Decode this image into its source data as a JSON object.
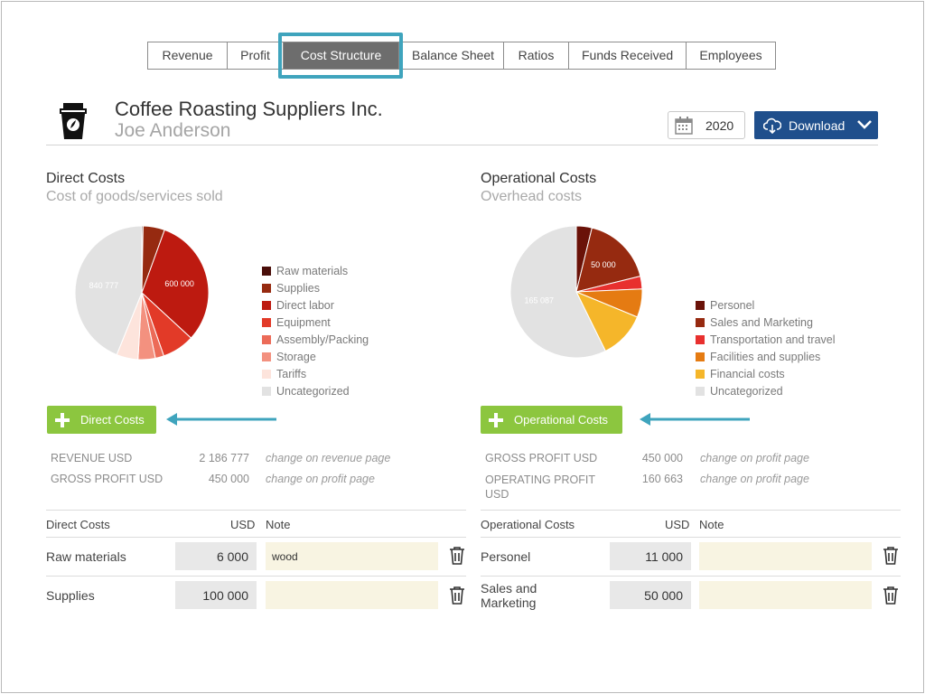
{
  "tabs": [
    {
      "label": "Revenue"
    },
    {
      "label": "Profit"
    },
    {
      "label": "Cost Structure",
      "active": true
    },
    {
      "label": "Balance Sheet"
    },
    {
      "label": "Ratios"
    },
    {
      "label": "Funds Received"
    },
    {
      "label": "Employees"
    }
  ],
  "header": {
    "company": "Coffee Roasting Suppliers Inc.",
    "person": "Joe Anderson",
    "year": "2020",
    "download_label": "Download",
    "icon": "coffee-cup-icon"
  },
  "colors": {
    "active_tab": "#6d6d6d",
    "highlight": "#3fa4bd",
    "download": "#1f4f8c",
    "add_button": "#8cc63f",
    "arrow": "#3fa4bd",
    "note_bg": "#f8f4e2",
    "input_bg": "#e8e8e8"
  },
  "direct": {
    "title": "Direct Costs",
    "subtitle": "Cost of goods/services sold",
    "add_label": "Direct Costs",
    "summary": [
      {
        "label": "REVENUE USD",
        "value": "2 186 777",
        "note": "change on revenue page"
      },
      {
        "label": "GROSS PROFIT USD",
        "value": "450 000",
        "note": "change on profit page"
      }
    ],
    "table": {
      "col_label": "Direct Costs",
      "col_usd": "USD",
      "col_note": "Note",
      "rows": [
        {
          "label": "Raw materials",
          "value": "6 000",
          "note": "wood"
        },
        {
          "label": "Supplies",
          "value": "100 000",
          "note": ""
        }
      ]
    }
  },
  "operational": {
    "title": "Operational Costs",
    "subtitle": "Overhead costs",
    "add_label": "Operational Costs",
    "summary": [
      {
        "label": "GROSS PROFIT USD",
        "value": "450 000",
        "note": "change on profit page"
      },
      {
        "label": "OPERATING PROFIT USD",
        "value": "160 663",
        "note": "change on profit page"
      }
    ],
    "table": {
      "col_label": "Operational Costs",
      "col_usd": "USD",
      "col_note": "Note",
      "rows": [
        {
          "label": "Personel",
          "value": "11 000",
          "note": ""
        },
        {
          "label": "Sales and Marketing",
          "value": "50 000",
          "note": ""
        }
      ]
    }
  },
  "chart_data": [
    {
      "type": "pie",
      "categories": [
        "Raw materials",
        "Supplies",
        "Direct labor",
        "Equipment",
        "Assembly/Packing",
        "Storage",
        "Tariffs",
        "Uncategorized"
      ],
      "values": [
        6000,
        100000,
        600000,
        150000,
        40000,
        80000,
        100000,
        840777
      ],
      "colors": [
        "#4a0e0a",
        "#962a10",
        "#bd1a10",
        "#e23a28",
        "#ec6b58",
        "#f3917f",
        "#fde4dc",
        "#e2e2e2"
      ],
      "labels": {
        "Direct labor": "600 000",
        "Uncategorized": "840 777"
      }
    },
    {
      "type": "pie",
      "categories": [
        "Personel",
        "Sales and Marketing",
        "Transportation and travel",
        "Facilities and supplies",
        "Financial costs",
        "Uncategorized"
      ],
      "values": [
        11000,
        50000,
        9000,
        20000,
        33000,
        165087
      ],
      "colors": [
        "#6a1208",
        "#962a10",
        "#e8302e",
        "#e57b12",
        "#f5b62a",
        "#e2e2e2"
      ],
      "labels": {
        "Sales and Marketing": "50 000",
        "Uncategorized": "165 087"
      }
    }
  ]
}
